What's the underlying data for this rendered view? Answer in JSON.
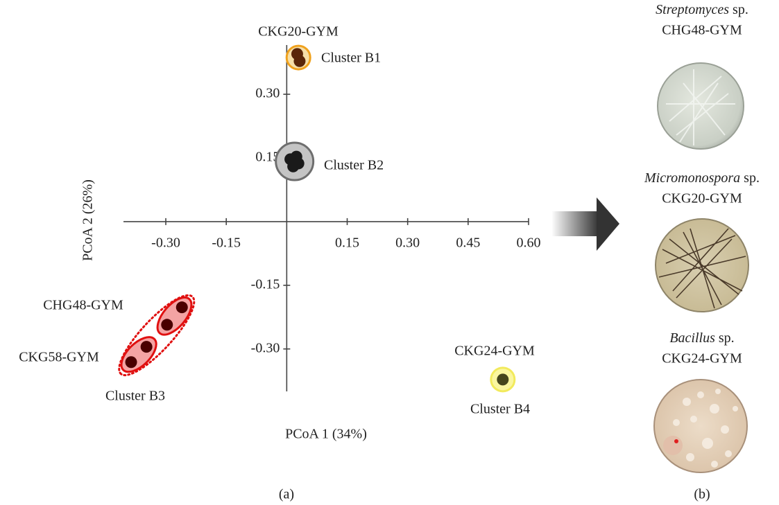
{
  "chart_data": {
    "type": "scatter",
    "panel_label": "(a)",
    "xlabel": "PCoA 1 (34%)",
    "ylabel": "PCoA 2 (26%)",
    "xlim": [
      -0.405,
      0.6
    ],
    "ylim": [
      -0.4,
      0.416
    ],
    "xticks": [
      {
        "value": -0.3,
        "label": "-0.30"
      },
      -0.15,
      0.15,
      {
        "value": 0.3,
        "label": "0.30"
      },
      0.45,
      {
        "value": 0.6,
        "label": "0.60"
      }
    ],
    "yticks": [
      {
        "value": -0.3,
        "label": "-0.30"
      },
      -0.15,
      0.15,
      {
        "value": 0.3,
        "label": "0.30"
      }
    ],
    "series": [
      {
        "name": "Cluster B1",
        "color": "#5a2608",
        "x": [
          0.026,
          0.032
        ],
        "y": [
          0.395,
          0.378
        ]
      },
      {
        "name": "Cluster B2",
        "color": "#1a1a1a",
        "x": [
          0.009,
          0.024,
          0.016,
          0.029
        ],
        "y": [
          0.147,
          0.153,
          0.13,
          0.137
        ]
      },
      {
        "name": "Cluster B3",
        "color": "#4a0000",
        "x": [
          -0.26,
          -0.297,
          -0.348,
          -0.386
        ],
        "y": [
          -0.202,
          -0.243,
          -0.295,
          -0.331
        ]
      },
      {
        "name": "Cluster B4",
        "color": "#45451c",
        "x": [
          0.536
        ],
        "y": [
          -0.372
        ]
      }
    ],
    "annotations": [
      "CKG20-GYM",
      "CHG48-GYM",
      "CKG58-GYM",
      "CKG24-GYM"
    ]
  },
  "panel_b": {
    "label": "(b)",
    "dishes": [
      {
        "genus": "Streptomyces",
        "suffix": " sp.",
        "strain": "CHG48-GYM"
      },
      {
        "genus": "Micromonospora",
        "suffix": " sp.",
        "strain": "CKG20-GYM"
      },
      {
        "genus": "Bacillus",
        "suffix": " sp.",
        "strain": "CKG24-GYM"
      }
    ]
  }
}
